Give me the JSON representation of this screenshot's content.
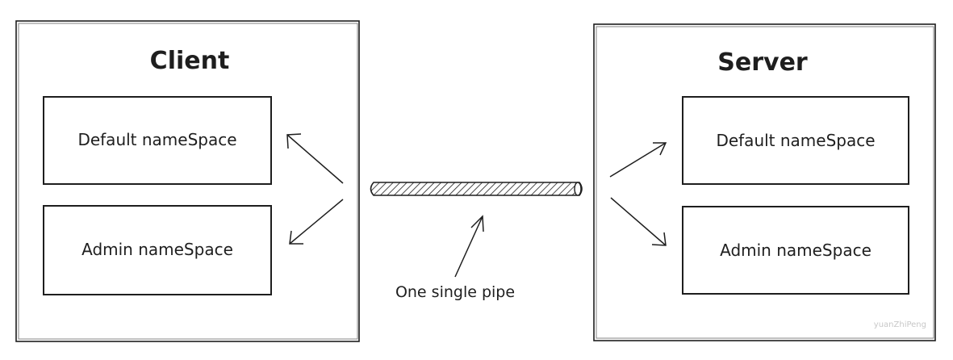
{
  "client": {
    "title": "Client",
    "namespaces": [
      "Default nameSpace",
      "Admin nameSpace"
    ]
  },
  "server": {
    "title": "Server",
    "namespaces": [
      "Default nameSpace",
      "Admin nameSpace"
    ]
  },
  "pipe": {
    "label": "One single pipe"
  },
  "watermark": "yuanZhiPeng",
  "colors": {
    "stroke": "#1e1e1e",
    "background": "#ffffff",
    "watermark": "#c8c8c8"
  }
}
